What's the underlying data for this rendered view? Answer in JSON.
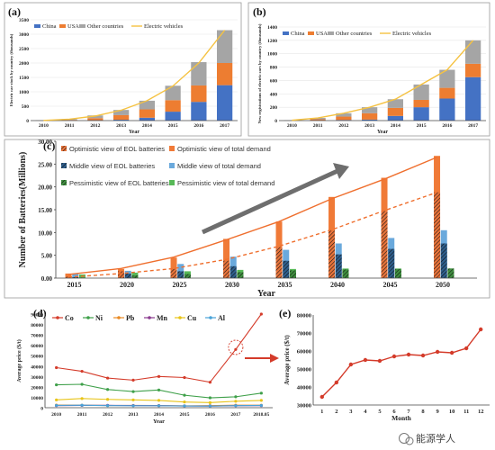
{
  "watermark": {
    "text": "能源学人"
  },
  "chart_data": [
    {
      "id": "a",
      "panel_label": "(a)",
      "type": "bar",
      "stacked": true,
      "categories": [
        "2010",
        "2011",
        "2012",
        "2013",
        "2014",
        "2015",
        "2016",
        "2017"
      ],
      "series": [
        {
          "name": "China",
          "color": "#4472c4",
          "values": [
            0,
            5,
            15,
            30,
            100,
            310,
            650,
            1230
          ]
        },
        {
          "name": "USA",
          "color": "#ed7d31",
          "values": [
            0,
            20,
            70,
            160,
            290,
            400,
            570,
            770
          ]
        },
        {
          "name": "Other countries",
          "color": "#a5a5a5",
          "values": [
            10,
            25,
            95,
            180,
            300,
            500,
            810,
            1140
          ]
        }
      ],
      "line": {
        "name": "Electric vehicles",
        "color": "#f5c242",
        "values": [
          5,
          50,
          160,
          360,
          690,
          1200,
          2000,
          3140
        ]
      },
      "xlabel": "Year",
      "ylabel": "Electric car stock by country (thousands)",
      "ylim": [
        0,
        3500
      ],
      "yticks": [
        0,
        500,
        1000,
        1500,
        2000,
        2500,
        3000,
        3500
      ],
      "legend_position": "top-left"
    },
    {
      "id": "b",
      "panel_label": "(b)",
      "type": "bar",
      "stacked": true,
      "categories": [
        "2010",
        "2011",
        "2012",
        "2013",
        "2014",
        "2015",
        "2016",
        "2017"
      ],
      "series": [
        {
          "name": "China",
          "color": "#4472c4",
          "values": [
            0,
            5,
            10,
            15,
            70,
            200,
            330,
            650
          ]
        },
        {
          "name": "USA",
          "color": "#ed7d31",
          "values": [
            0,
            15,
            50,
            95,
            120,
            110,
            160,
            200
          ]
        },
        {
          "name": "Other countries",
          "color": "#a5a5a5",
          "values": [
            5,
            20,
            50,
            90,
            130,
            230,
            270,
            350
          ]
        }
      ],
      "line": {
        "name": "Electric vehicles",
        "color": "#f5c242",
        "values": [
          5,
          40,
          110,
          200,
          320,
          540,
          760,
          1200
        ]
      },
      "xlabel": "Year",
      "ylabel": "New registrations of electric cars by country (thousands)",
      "ylim": [
        0,
        1400
      ],
      "yticks": [
        0,
        200,
        400,
        600,
        800,
        1000,
        1200,
        1400
      ],
      "legend_position": "top-left"
    },
    {
      "id": "c",
      "panel_label": "(c)",
      "type": "bar",
      "categories": [
        "2015",
        "2020",
        "2025",
        "2030",
        "2035",
        "2040",
        "2045",
        "2050"
      ],
      "series": [
        {
          "name": "Optimistic view of EOL batteries",
          "color": "#e8743b",
          "pattern": "hatch",
          "values": [
            0.3,
            1.5,
            2.0,
            3.8,
            6.8,
            10.4,
            14.7,
            18.8
          ]
        },
        {
          "name": "Middle view of EOL batteries",
          "color": "#2e5e8c",
          "pattern": "hatch",
          "values": [
            0.2,
            1.0,
            1.5,
            2.6,
            3.8,
            5.2,
            6.4,
            7.6
          ]
        },
        {
          "name": "Pessimistic view of EOL batteries",
          "color": "#3f8f3f",
          "pattern": "hatch",
          "values": [
            0.1,
            0.6,
            0.9,
            1.3,
            1.7,
            1.9,
            2.0,
            2.1
          ]
        },
        {
          "name": "Optimistic view of total demand",
          "color": "#f07a37",
          "pattern": "solid",
          "values": [
            1.0,
            2.0,
            4.5,
            8.6,
            12.4,
            17.8,
            22.0,
            26.8
          ]
        },
        {
          "name": "Middle view of total demand",
          "color": "#6aa9dc",
          "pattern": "solid",
          "values": [
            1.0,
            1.6,
            3.1,
            4.7,
            6.2,
            7.6,
            8.8,
            10.5
          ]
        },
        {
          "name": "Pessimistic view of total demand",
          "color": "#57b957",
          "pattern": "solid",
          "values": [
            0.8,
            1.2,
            1.5,
            1.8,
            2.0,
            2.1,
            2.1,
            2.1
          ]
        }
      ],
      "trend_solid": [
        0.8,
        2.1,
        4.6,
        8.4,
        12.4,
        17.4,
        21.7,
        26.5
      ],
      "trend_dashed": [
        0.2,
        1.0,
        2.1,
        4.1,
        7.0,
        10.6,
        14.8,
        18.8
      ],
      "xlabel": "Year",
      "ylabel": "Number of Batteries(Millions)",
      "ylim": [
        0,
        30
      ],
      "yticks": [
        0,
        5,
        10,
        15,
        20,
        25,
        30
      ],
      "ytick_labels": [
        "0.00",
        "5.00",
        "10.00",
        "15.00",
        "20.00",
        "25.00",
        "30.00"
      ],
      "legend_position": "top-left"
    },
    {
      "id": "d",
      "panel_label": "(d)",
      "type": "line",
      "categories": [
        "2010",
        "2011",
        "2012",
        "2013",
        "2014",
        "2015",
        "2016",
        "2017",
        "2018.05"
      ],
      "series": [
        {
          "name": "Co",
          "color": "#d43b2a",
          "values": [
            38500,
            35000,
            28500,
            26500,
            30000,
            29000,
            24500,
            56000,
            90000
          ]
        },
        {
          "name": "Ni",
          "color": "#3fa04a",
          "values": [
            22000,
            22500,
            17500,
            15500,
            17000,
            12000,
            9500,
            10500,
            14000
          ]
        },
        {
          "name": "Pb",
          "color": "#e98a24",
          "values": [
            2500,
            2400,
            2100,
            2200,
            2100,
            1800,
            2000,
            2400,
            2400
          ]
        },
        {
          "name": "Mn",
          "color": "#8a3b8f",
          "values": [
            2000,
            2200,
            2300,
            2100,
            2000,
            1700,
            1600,
            1900,
            2000
          ]
        },
        {
          "name": "Cu",
          "color": "#e8c418",
          "values": [
            7500,
            8800,
            8000,
            7500,
            7000,
            5500,
            4900,
            6200,
            7000
          ]
        },
        {
          "name": "Al",
          "color": "#4aa3d8",
          "values": [
            2200,
            2400,
            2000,
            1900,
            1900,
            1700,
            1600,
            2000,
            2200
          ]
        }
      ],
      "xlabel": "Year",
      "ylabel": "Average price ($/t)",
      "ylim": [
        0,
        90000
      ],
      "yticks": [
        0,
        10000,
        20000,
        30000,
        40000,
        50000,
        60000,
        70000,
        80000,
        90000
      ],
      "legend_position": "top-left",
      "annotation": {
        "type": "dashed-circle",
        "at_category": "2017",
        "at_value": 58000
      }
    },
    {
      "id": "e",
      "panel_label": "(e)",
      "type": "line",
      "categories": [
        "1",
        "2",
        "3",
        "4",
        "5",
        "6",
        "7",
        "8",
        "9",
        "10",
        "11",
        "12"
      ],
      "series": [
        {
          "name": "",
          "color": "#d43b2a",
          "values": [
            34500,
            42500,
            52500,
            55000,
            54500,
            57000,
            58000,
            57500,
            59500,
            59000,
            61500,
            72000
          ]
        }
      ],
      "xlabel": "Month",
      "ylabel": "Average price ($/t)",
      "ylim": [
        30000,
        80000
      ],
      "yticks": [
        30000,
        40000,
        50000,
        60000,
        70000,
        80000
      ]
    }
  ]
}
